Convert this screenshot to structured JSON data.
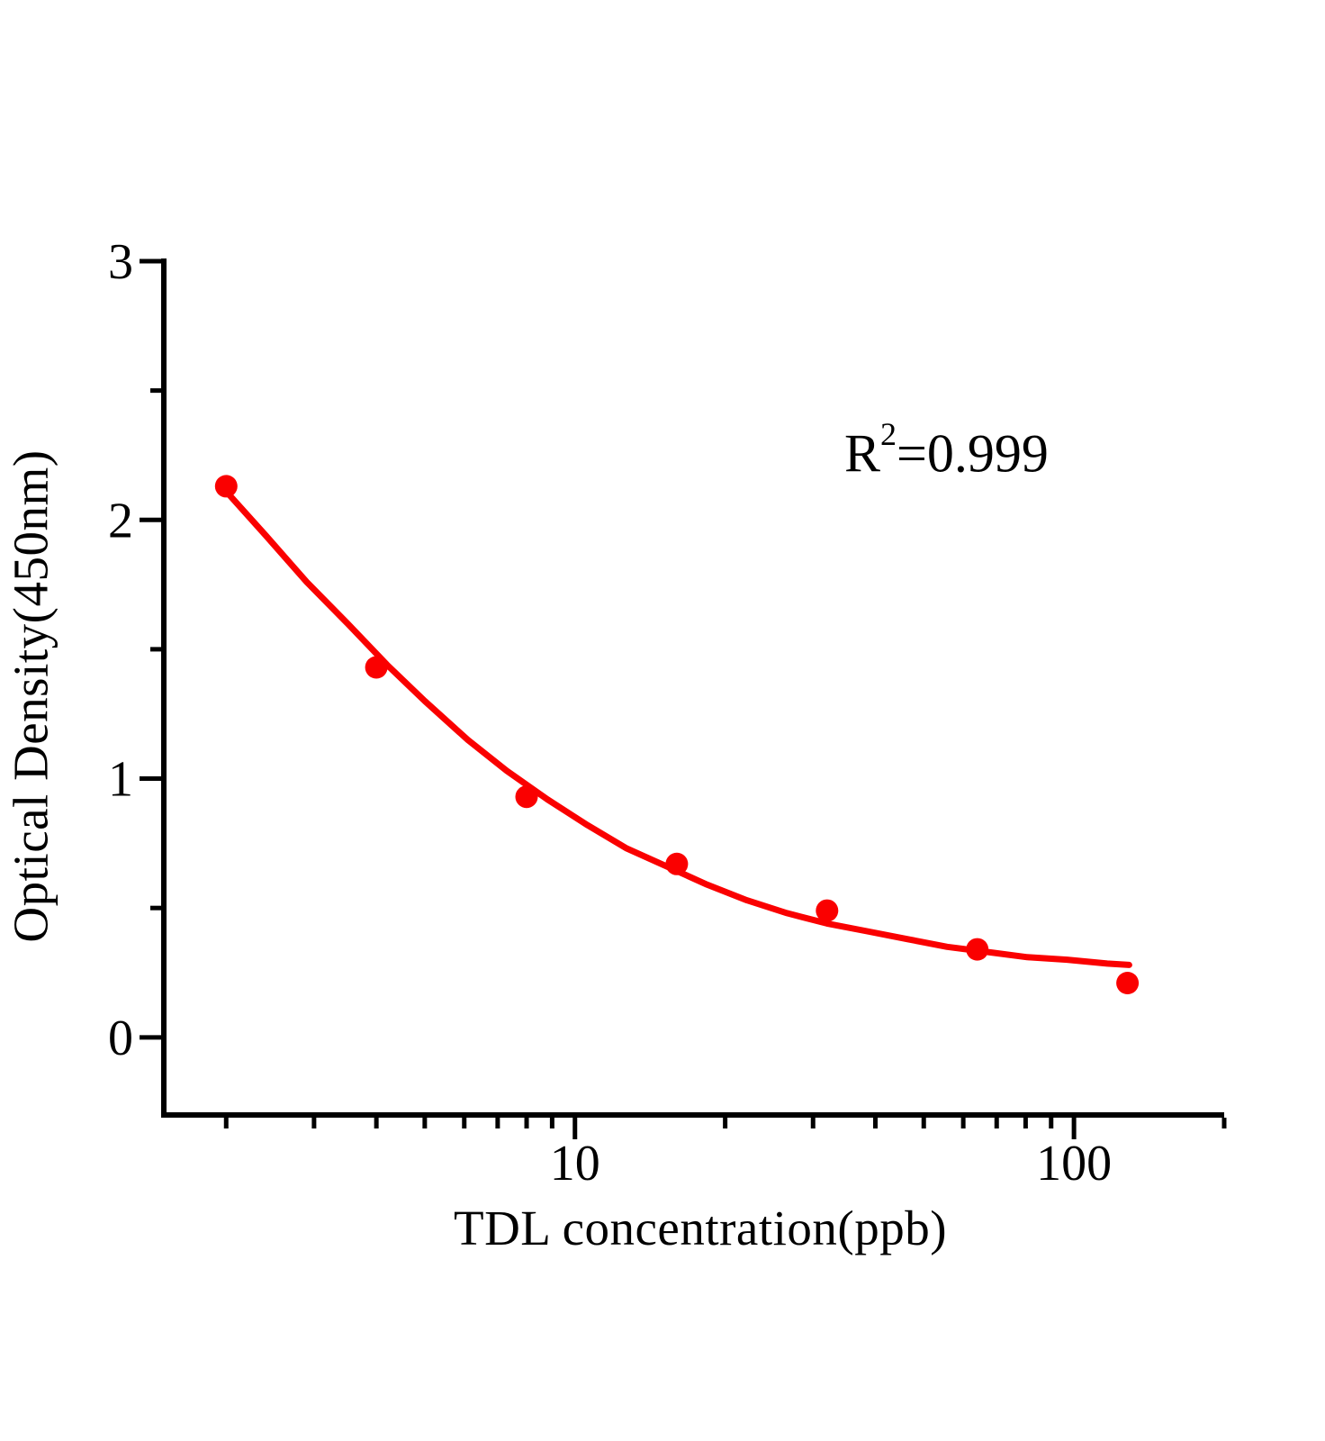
{
  "chart_data": {
    "type": "scatter",
    "title": "",
    "xlabel": "TDL concentration(ppb)",
    "ylabel": "Optical Density(450nm)",
    "x_scale": "log",
    "y_scale": "linear",
    "xlim": [
      1.5,
      200
    ],
    "ylim": [
      -0.3,
      3
    ],
    "grid": false,
    "legend": "none",
    "x_major_ticks": [
      10,
      100
    ],
    "x_minor_ticks": [
      2,
      3,
      4,
      5,
      6,
      7,
      8,
      9,
      20,
      30,
      40,
      50,
      60,
      70,
      80,
      90,
      200
    ],
    "y_major_ticks": [
      0,
      1,
      2,
      3
    ],
    "y_minor_ticks": [
      0.5,
      1.5,
      2.5
    ],
    "series": [
      {
        "name": "fit-curve",
        "type": "line",
        "color": "#fa0000",
        "stroke_width": 7,
        "points": [
          [
            2,
            2.11
          ],
          [
            2.4,
            1.94
          ],
          [
            2.9,
            1.76
          ],
          [
            3.5,
            1.6
          ],
          [
            4.2,
            1.44
          ],
          [
            5,
            1.3
          ],
          [
            6.1,
            1.15
          ],
          [
            7.3,
            1.03
          ],
          [
            8.8,
            0.92
          ],
          [
            10.6,
            0.82
          ],
          [
            12.7,
            0.73
          ],
          [
            15.3,
            0.66
          ],
          [
            18.4,
            0.59
          ],
          [
            22.1,
            0.53
          ],
          [
            26.6,
            0.48
          ],
          [
            32,
            0.44
          ],
          [
            38.5,
            0.41
          ],
          [
            46.3,
            0.38
          ],
          [
            55.7,
            0.35
          ],
          [
            67,
            0.33
          ],
          [
            80.6,
            0.31
          ],
          [
            96.9,
            0.3
          ],
          [
            116.6,
            0.285
          ],
          [
            129,
            0.28
          ]
        ]
      },
      {
        "name": "standard-points",
        "type": "scatter",
        "color": "#fa0000",
        "marker_radius": 12.5,
        "points": [
          [
            2,
            2.13
          ],
          [
            4,
            1.43
          ],
          [
            8,
            0.93
          ],
          [
            16,
            0.67
          ],
          [
            32,
            0.49
          ],
          [
            64,
            0.34
          ],
          [
            128,
            0.21
          ]
        ]
      }
    ],
    "annotation": {
      "prefix": "R",
      "sup": "2",
      "suffix": "=0.999",
      "text": "R²=0.999"
    }
  },
  "style": {
    "background": "#ffffff",
    "axis_color": "#000000",
    "accent": "#fa0000"
  }
}
